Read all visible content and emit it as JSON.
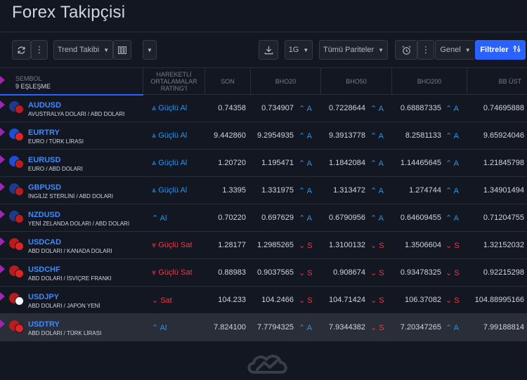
{
  "page_title": "Forex Takipçisi",
  "toolbar": {
    "refresh_icon": "refresh-icon",
    "more_icon": "vertical-dots-icon",
    "trend_label": "Trend Takibi",
    "columns_icon": "columns-icon",
    "download_icon": "download-icon",
    "interval_label": "1G",
    "pairs_label": "Tümü Pariteler",
    "alarm_icon": "alarm-clock-icon",
    "general_label": "Genel",
    "filters_label": "Filtreler"
  },
  "columns": {
    "symbol": "SEMBOL",
    "symbol_count": "9 EŞLEŞME",
    "rating": "HAREKETLİ ORTALAMALAR RATİNG'İ",
    "last": "SON",
    "ema20": "BHO20",
    "ema50": "BHO50",
    "ema200": "BHO200",
    "bb_upper": "BB ÜST"
  },
  "colors": {
    "buy": "#2196f3",
    "sell": "#f23645",
    "accent": "#2962ff",
    "marker": "#9c27b0"
  },
  "rows": [
    {
      "symbol": "AUDUSD",
      "desc": "AVUSTRALYA DOLARI / ABD DOLARI",
      "rating": "^ Güçlü Al",
      "rating_type": "buy",
      "last": "0.74358",
      "ema20": "0.734907",
      "ema20_sig": "^ A",
      "ema20_type": "buy",
      "ema50": "0.7228644",
      "ema50_sig": "^ A",
      "ema50_type": "buy",
      "ema200": "0.68887335",
      "ema200_sig": "^ A",
      "ema200_type": "buy",
      "bb_upper": "0.74695888",
      "flags": [
        "#1e3a8a",
        "#b91c1c"
      ]
    },
    {
      "symbol": "EURTRY",
      "desc": "EURO / TÜRK LİRASI",
      "rating": "^ Güçlü Al",
      "rating_type": "buy",
      "last": "9.442860",
      "ema20": "9.2954935",
      "ema20_sig": "^ A",
      "ema20_type": "buy",
      "ema50": "9.3913778",
      "ema50_sig": "^ A",
      "ema50_type": "buy",
      "ema200": "8.2581133",
      "ema200_sig": "^ A",
      "ema200_type": "buy",
      "bb_upper": "9.65924046",
      "flags": [
        "#1d4ed8",
        "#dc2626"
      ]
    },
    {
      "symbol": "EURUSD",
      "desc": "EURO / ABD DOLARI",
      "rating": "^ Güçlü Al",
      "rating_type": "buy",
      "last": "1.20720",
      "ema20": "1.195471",
      "ema20_sig": "^ A",
      "ema20_type": "buy",
      "ema50": "1.1842084",
      "ema50_sig": "^ A",
      "ema50_type": "buy",
      "ema200": "1.14465645",
      "ema200_sig": "^ A",
      "ema200_type": "buy",
      "bb_upper": "1.21845798",
      "flags": [
        "#1d4ed8",
        "#b91c1c"
      ]
    },
    {
      "symbol": "GBPUSD",
      "desc": "İNGİLİZ STERLİNİ / ABD DOLARI",
      "rating": "^ Güçlü Al",
      "rating_type": "buy",
      "last": "1.3395",
      "ema20": "1.331975",
      "ema20_sig": "^ A",
      "ema20_type": "buy",
      "ema50": "1.313472",
      "ema50_sig": "^ A",
      "ema50_type": "buy",
      "ema200": "1.274744",
      "ema200_sig": "^ A",
      "ema200_type": "buy",
      "bb_upper": "1.34901494",
      "flags": [
        "#1e3a8a",
        "#b91c1c"
      ]
    },
    {
      "symbol": "NZDUSD",
      "desc": "YENİ ZELANDA DOLARI / ABD DOLARI",
      "rating": "^ Al",
      "rating_type": "buy",
      "last": "0.70220",
      "ema20": "0.697629",
      "ema20_sig": "^ A",
      "ema20_type": "buy",
      "ema50": "0.6790956",
      "ema50_sig": "^ A",
      "ema50_type": "buy",
      "ema200": "0.64609455",
      "ema200_sig": "^ A",
      "ema200_type": "buy",
      "bb_upper": "0.71204755",
      "flags": [
        "#1e3a8a",
        "#b91c1c"
      ]
    },
    {
      "symbol": "USDCAD",
      "desc": "ABD DOLARI / KANADA DOLARI",
      "rating": "v Güçlü Sat",
      "rating_type": "sell",
      "last": "1.28177",
      "ema20": "1.2985265",
      "ema20_sig": "v S",
      "ema20_type": "sell",
      "ema50": "1.3100132",
      "ema50_sig": "v S",
      "ema50_type": "sell",
      "ema200": "1.3506604",
      "ema200_sig": "v S",
      "ema200_type": "sell",
      "bb_upper": "1.32152032",
      "flags": [
        "#b91c1c",
        "#dc2626"
      ]
    },
    {
      "symbol": "USDCHF",
      "desc": "ABD DOLARI / İSVİÇRE FRANKI",
      "rating": "v Güçlü Sat",
      "rating_type": "sell",
      "last": "0.88983",
      "ema20": "0.9037565",
      "ema20_sig": "v S",
      "ema20_type": "sell",
      "ema50": "0.908674",
      "ema50_sig": "v S",
      "ema50_type": "sell",
      "ema200": "0.93478325",
      "ema200_sig": "v S",
      "ema200_type": "sell",
      "bb_upper": "0.92215298",
      "flags": [
        "#b91c1c",
        "#dc2626"
      ]
    },
    {
      "symbol": "USDJPY",
      "desc": "ABD DOLARI / JAPON YENİ",
      "rating": "v Sat",
      "rating_type": "sell",
      "last": "104.233",
      "ema20": "104.2466",
      "ema20_sig": "v S",
      "ema20_type": "sell",
      "ema50": "104.71424",
      "ema50_sig": "v S",
      "ema50_type": "sell",
      "ema200": "106.37082",
      "ema200_sig": "v S",
      "ema200_type": "sell",
      "bb_upper": "104.88995166",
      "flags": [
        "#b91c1c",
        "#f8fafc"
      ]
    },
    {
      "symbol": "USDTRY",
      "desc": "ABD DOLARI / TÜRK LİRASI",
      "rating": "^ Al",
      "rating_type": "buy",
      "last": "7.824100",
      "ema20": "7.7794325",
      "ema20_sig": "^ A",
      "ema20_type": "buy",
      "ema50": "7.9344382",
      "ema50_sig": "v S",
      "ema50_type": "sell",
      "ema200": "7.20347265",
      "ema200_sig": "^ A",
      "ema200_type": "buy",
      "bb_upper": "7.99188814",
      "flags": [
        "#b91c1c",
        "#dc2626"
      ],
      "highlight": true
    }
  ]
}
